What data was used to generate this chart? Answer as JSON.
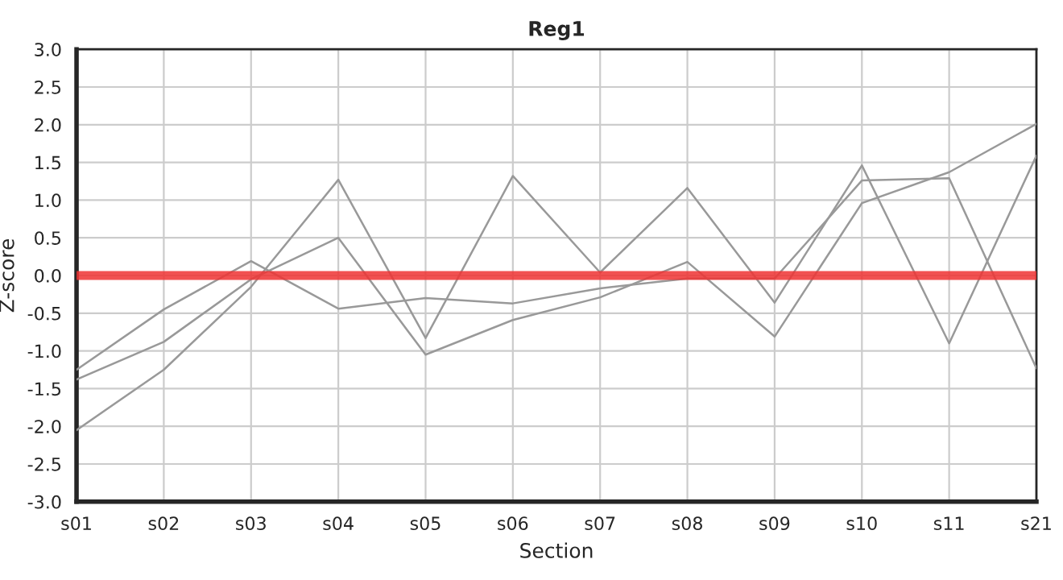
{
  "chart_data": {
    "type": "line",
    "title": "Reg1",
    "xlabel": "Section",
    "ylabel": "Z-score",
    "categories": [
      "s01",
      "s02",
      "s03",
      "s04",
      "s05",
      "s06",
      "s07",
      "s08",
      "s09",
      "s10",
      "s11",
      "s21"
    ],
    "series": [
      {
        "color": "#999999",
        "values": [
          -2.05,
          -1.25,
          -0.15,
          1.27,
          -0.83,
          1.32,
          0.04,
          1.16,
          -0.36,
          1.46,
          -0.9,
          1.59
        ]
      },
      {
        "color": "#999999",
        "values": [
          -1.38,
          -0.88,
          -0.05,
          0.5,
          -1.05,
          -0.59,
          -0.29,
          0.18,
          -0.81,
          0.96,
          1.37,
          2.01
        ]
      },
      {
        "color": "#999999",
        "values": [
          -1.25,
          -0.45,
          0.19,
          -0.44,
          -0.3,
          -0.37,
          -0.17,
          -0.04,
          -0.04,
          1.26,
          1.29,
          -1.23
        ]
      }
    ],
    "ylim": [
      -3,
      3
    ],
    "yticks": [
      {
        "value": -3,
        "label": "-3.0"
      },
      {
        "value": -2.5,
        "label": "-2.5"
      },
      {
        "value": -2,
        "label": "-2.0"
      },
      {
        "value": -1.5,
        "label": "-1.5"
      },
      {
        "value": -1,
        "label": "-1.0"
      },
      {
        "value": -0.5,
        "label": "-0.5"
      },
      {
        "value": 0,
        "label": "0.0"
      },
      {
        "value": 0.5,
        "label": "0.5"
      },
      {
        "value": 1,
        "label": "1.0"
      },
      {
        "value": 1.5,
        "label": "1.5"
      },
      {
        "value": 2,
        "label": "2.0"
      },
      {
        "value": 2.5,
        "label": "2.5"
      },
      {
        "value": 3,
        "label": "3.0"
      }
    ],
    "ref_lines": [
      {
        "axis": "y",
        "value": 0,
        "color": "#ee3333"
      }
    ],
    "grid": true,
    "marker": "none",
    "line_style": "solid"
  }
}
